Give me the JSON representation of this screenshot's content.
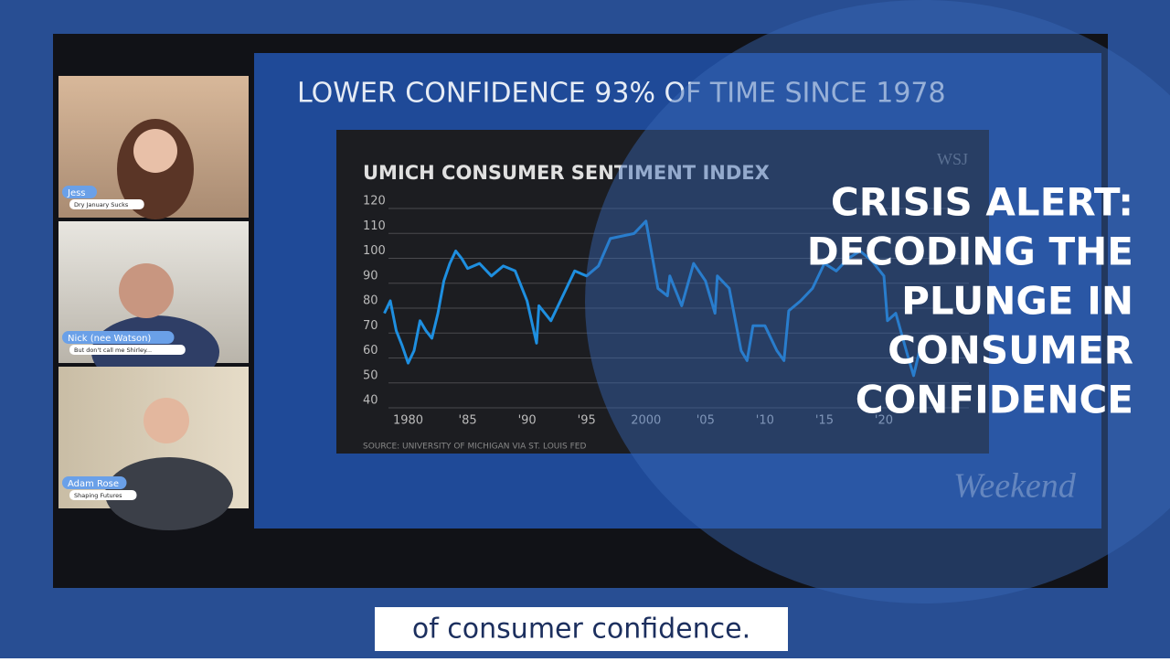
{
  "chart_data": {
    "type": "line",
    "title": "UMICH CONSUMER SENTIMENT INDEX",
    "source": "SOURCE: UNIVERSITY OF MICHIGAN VIA ST. LOUIS FED",
    "x": [
      1978,
      1978.5,
      1979,
      1979.5,
      1980,
      1980.5,
      1981,
      1981.5,
      1982,
      1982.5,
      1983,
      1983.5,
      1984,
      1984.5,
      1985,
      1986,
      1987,
      1988,
      1989,
      1990,
      1990.8,
      1991,
      1992,
      1993,
      1994,
      1995,
      1996,
      1997,
      1998,
      1999,
      2000,
      2001,
      2001.8,
      2002,
      2003,
      2004,
      2005,
      2005.8,
      2006,
      2007,
      2008,
      2008.5,
      2009,
      2010,
      2011,
      2011.6,
      2012,
      2013,
      2014,
      2015,
      2016,
      2017,
      2018,
      2019,
      2020,
      2020.3,
      2021,
      2022,
      2022.5,
      2023
    ],
    "values": [
      75,
      80,
      68,
      62,
      55,
      60,
      72,
      68,
      65,
      75,
      88,
      95,
      100,
      97,
      93,
      95,
      90,
      94,
      92,
      80,
      63,
      78,
      72,
      82,
      92,
      90,
      94,
      105,
      106,
      107,
      112,
      85,
      82,
      90,
      78,
      95,
      88,
      75,
      90,
      85,
      60,
      56,
      70,
      70,
      60,
      56,
      76,
      80,
      85,
      95,
      92,
      97,
      100,
      96,
      90,
      72,
      75,
      58,
      50,
      60
    ],
    "color": "#1e8fe0",
    "xlim": [
      1977.5,
      2023
    ],
    "ylim": [
      40,
      120
    ],
    "xticks": [
      1980,
      {
        "value": 1985,
        "label": "'85"
      },
      {
        "value": 1990,
        "label": "'90"
      },
      {
        "value": 1995,
        "label": "'95"
      },
      2000,
      {
        "value": 2005,
        "label": "'05"
      },
      {
        "value": 2010,
        "label": "'10"
      },
      {
        "value": 2015,
        "label": "'15"
      },
      {
        "value": 2020,
        "label": "'20"
      }
    ],
    "yticks": [
      40,
      50,
      60,
      70,
      80,
      90,
      100,
      110,
      120
    ],
    "grid": true
  },
  "slide": {
    "headline": "LOWER CONFIDENCE 93% OF TIME SINCE 1978",
    "logo": "WSJ",
    "watermark": "Weekend"
  },
  "title_lines": [
    "CRISIS ALERT:",
    "DECODING THE",
    "PLUNGE IN",
    "CONSUMER",
    "CONFIDENCE"
  ],
  "participants": [
    {
      "name": "Jess",
      "tagline": "Dry January Sucks"
    },
    {
      "name": "Nick (nee Watson)",
      "tagline": "But don't call me Shirley..."
    },
    {
      "name": "Adam Rose",
      "tagline": "Shaping Futures"
    }
  ],
  "caption": "of consumer confidence."
}
